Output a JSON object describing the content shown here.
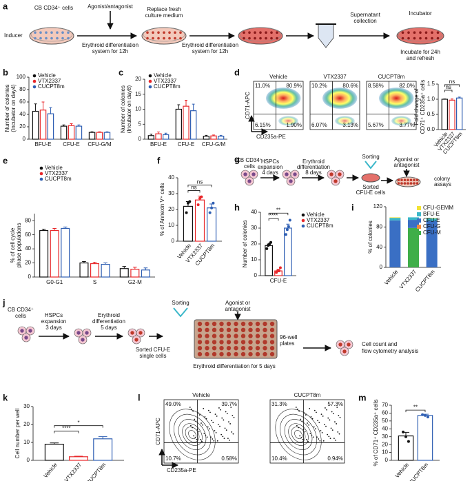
{
  "panel_labels": [
    "a",
    "b",
    "c",
    "d",
    "e",
    "f",
    "g",
    "h",
    "i",
    "j",
    "k",
    "l",
    "m"
  ],
  "diagram_a": {
    "cells": "CB CD34⁺ cells",
    "inducer": "Inducer",
    "agonist": "Agonist/antagonist",
    "replace": [
      "Replace fresh",
      "culture medium"
    ],
    "diff1": [
      "Erythroid differentiation",
      "system for 12h"
    ],
    "diff2": [
      "Erythroid differentiation",
      "system for 12h"
    ],
    "supernatant": [
      "Supernatant",
      "collection"
    ],
    "incubator": "Incubator",
    "incubate": [
      "Incubate for 24h",
      "and refresh"
    ]
  },
  "flow_d": {
    "x_label": "CD235a-PE",
    "y_label": "CD71-APC",
    "plots": [
      {
        "title": "Vehicle",
        "quadrants": [
          "11.0%",
          "80.9%",
          "6.15%",
          "1.90%"
        ]
      },
      {
        "title": "VTX2337",
        "quadrants": [
          "10.2%",
          "80.6%",
          "6.07%",
          "3.13%"
        ]
      },
      {
        "title": "CUCPT8m",
        "quadrants": [
          "8.58%",
          "82.0%",
          "5.67%",
          "3.77%"
        ]
      }
    ]
  },
  "diagram_g": {
    "cells": [
      "CB CD34⁺",
      "cells"
    ],
    "expansion": [
      "HSPCs",
      "expansion",
      "4 days"
    ],
    "diff": [
      "Erythroid",
      "differentiation",
      "8 days"
    ],
    "sorting": "Sorting",
    "sorted": [
      "Sorted",
      "CFU-E cells"
    ],
    "agonist": [
      "Agonist or",
      "antagonist"
    ],
    "assay": [
      "colony",
      "assays"
    ]
  },
  "diagram_j": {
    "cells": [
      "CB CD34⁺",
      "cells"
    ],
    "expansion": [
      "HSPCs",
      "expansion",
      "3 days"
    ],
    "diff": [
      "Erythroid",
      "differentiation",
      "5 days"
    ],
    "sorted": [
      "Sorted CFU-E",
      "single cells"
    ],
    "sorting": "Sorting",
    "agonist": [
      "Agonist or",
      "antagonist"
    ],
    "plates": [
      "96-well",
      "plates"
    ],
    "diff5": "Erythroid differentiation for 5 days",
    "analysis": [
      "Cell count and",
      "flow cytometry analysis"
    ]
  },
  "flow_l": {
    "x_label": "CD235a-PE",
    "y_label": "CD71-APC",
    "plots": [
      {
        "title": "Vehicle",
        "quadrants": [
          "49.0%",
          "39.7%",
          "10.7%",
          "0.58%"
        ]
      },
      {
        "title": "CUCPT8m",
        "quadrants": [
          "31.3%",
          "57.3%",
          "10.4%",
          "0.94%"
        ]
      }
    ]
  },
  "chart_data": [
    {
      "type": "bar",
      "y_label": [
        "Number of colonies",
        "(Incubator on day4)"
      ],
      "categories": [
        "BFU-E",
        "CFU-E",
        "CFU-G/M"
      ],
      "ylim": [
        0,
        100
      ],
      "yticks": [
        0,
        20,
        40,
        60,
        80,
        100
      ],
      "legend": true,
      "series": [
        {
          "name": "Vehicle",
          "color": "#111111",
          "values": [
            45,
            21,
            11
          ],
          "errors": [
            12,
            2,
            1
          ]
        },
        {
          "name": "VTX2337",
          "color": "#e8272a",
          "values": [
            47,
            22,
            11
          ],
          "errors": [
            13,
            3,
            1
          ]
        },
        {
          "name": "CUCPT8m",
          "color": "#2f5fb3",
          "values": [
            41,
            21,
            11
          ],
          "errors": [
            10,
            2,
            1
          ]
        }
      ]
    },
    {
      "type": "bar",
      "y_label": [
        "Number of colonies",
        "(Incubator on day8)"
      ],
      "categories": [
        "BFU-E",
        "CFU-E",
        "CFU-G/M"
      ],
      "ylim": [
        0,
        20
      ],
      "yticks": [
        0,
        5,
        10,
        15,
        20
      ],
      "legend": true,
      "series": [
        {
          "name": "Vehicle",
          "color": "#111111",
          "values": [
            1.2,
            10,
            1
          ],
          "errors": [
            0.5,
            1.5,
            0.3
          ]
        },
        {
          "name": "VTX2337",
          "color": "#e8272a",
          "values": [
            1.8,
            11,
            1.1
          ],
          "errors": [
            0.6,
            2,
            0.3
          ]
        },
        {
          "name": "CUCPT8m",
          "color": "#2f5fb3",
          "values": [
            1.5,
            9.5,
            1
          ],
          "errors": [
            0.5,
            2.2,
            0.3
          ]
        }
      ]
    },
    {
      "type": "bar",
      "y_label": [
        "Fold change of",
        "CD71⁺ CD235a⁺ cells"
      ],
      "ylim": [
        0,
        1.5
      ],
      "yticks": [
        {
          "value": 0,
          "label": "0.0"
        },
        0.5,
        {
          "value": 1,
          "label": "1.0"
        },
        1.5
      ],
      "annotations": [
        "ns",
        "ns"
      ],
      "series": [
        {
          "name": "Vehicle",
          "color": "#111111",
          "values": [
            1.0
          ],
          "errors": [
            0.01
          ]
        },
        {
          "name": "VTX2337",
          "color": "#e8272a",
          "values": [
            0.97
          ],
          "errors": [
            0.04
          ]
        },
        {
          "name": "CUCPT8m",
          "color": "#2f5fb3",
          "values": [
            1.04
          ],
          "errors": [
            0.03
          ]
        }
      ]
    },
    {
      "type": "bar",
      "y_label": [
        "% of cell cycle",
        "phase populations"
      ],
      "categories": [
        "G0-G1",
        "S",
        "G2-M"
      ],
      "ylim": [
        0,
        90
      ],
      "yticks": [
        0,
        20,
        40,
        60,
        80
      ],
      "legend": true,
      "series": [
        {
          "name": "Vehicle",
          "color": "#111111",
          "values": [
            66,
            20,
            12
          ],
          "errors": [
            2,
            2,
            3
          ]
        },
        {
          "name": "VTX2337",
          "color": "#e8272a",
          "values": [
            66,
            19,
            11
          ],
          "errors": [
            3,
            2,
            3
          ]
        },
        {
          "name": "CUCPT8m",
          "color": "#2f5fb3",
          "values": [
            69,
            18,
            10
          ],
          "errors": [
            2,
            2,
            3
          ]
        }
      ]
    },
    {
      "type": "bar",
      "y_label": [
        "% of Annexin V⁺ cells"
      ],
      "ylim": [
        0,
        40
      ],
      "yticks": [
        0,
        10,
        20,
        30,
        40
      ],
      "annotations": [
        "ns",
        "ns"
      ],
      "series": [
        {
          "name": "Vehicle",
          "color": "#111111",
          "values": [
            22
          ],
          "errors": [
            3
          ],
          "points": [
            [
              18,
              24,
              25
            ]
          ]
        },
        {
          "name": "VTX2337",
          "color": "#e8272a",
          "values": [
            26
          ],
          "errors": [
            2.5
          ],
          "points": [
            [
              23,
              27,
              28
            ]
          ]
        },
        {
          "name": "CUCPT8m",
          "color": "#2f5fb3",
          "values": [
            21
          ],
          "errors": [
            2.5
          ],
          "points": [
            [
              18,
              21,
              24
            ]
          ]
        }
      ]
    },
    {
      "type": "bar",
      "y_label": [
        "Number of colonies"
      ],
      "categories": [
        "CFU-E"
      ],
      "ylim": [
        0,
        40
      ],
      "yticks": [
        0,
        10,
        20,
        30,
        40
      ],
      "legend": true,
      "annotations": [
        "****",
        "**"
      ],
      "series": [
        {
          "name": "Vehicle",
          "color": "#111111",
          "values": [
            19
          ],
          "errors": [
            1
          ],
          "points": [
            [
              17,
              19,
              20,
              21
            ]
          ]
        },
        {
          "name": "VTX2337",
          "color": "#e8272a",
          "values": [
            3
          ],
          "errors": [
            1
          ],
          "points": [
            [
              2,
              3,
              3,
              5
            ]
          ]
        },
        {
          "name": "CUCPT8m",
          "color": "#2f5fb3",
          "values": [
            30
          ],
          "errors": [
            2.5
          ],
          "points": [
            [
              26,
              29,
              31,
              35
            ]
          ]
        }
      ]
    },
    {
      "type": "stacked_bar",
      "y_label": [
        "% of colonies"
      ],
      "categories": [
        "Vehicle",
        "VTX2337",
        "CUCPT8m"
      ],
      "ylim": [
        0,
        120
      ],
      "yticks": [
        0,
        40,
        80,
        120
      ],
      "legend": true,
      "series": [
        {
          "name": "CFU-M",
          "color": "#3fae49",
          "values": [
            0,
            78,
            0
          ]
        },
        {
          "name": "CFU-G",
          "color": "#f58a3a",
          "values": [
            0,
            0,
            0
          ]
        },
        {
          "name": "CFU-E",
          "color": "#3a6fc4",
          "values": [
            93,
            16,
            92
          ]
        },
        {
          "name": "BFU-E",
          "color": "#3ab7c9",
          "values": [
            5,
            5,
            5
          ]
        },
        {
          "name": "CFU-GEMM",
          "color": "#f2e335",
          "values": [
            1,
            0,
            1
          ]
        }
      ]
    },
    {
      "type": "bar",
      "y_label": [
        "Cell number per well"
      ],
      "ylim": [
        0,
        30
      ],
      "yticks": [
        0,
        10,
        20,
        30
      ],
      "annotations": [
        "****",
        "*"
      ],
      "series": [
        {
          "name": "Vehicle",
          "color": "#111111",
          "values": [
            9
          ],
          "errors": [
            0.7
          ]
        },
        {
          "name": "VTX2337",
          "color": "#e8272a",
          "values": [
            2
          ],
          "errors": [
            0.3
          ]
        },
        {
          "name": "CUCPT8m",
          "color": "#2f5fb3",
          "values": [
            12
          ],
          "errors": [
            1.2
          ]
        }
      ]
    },
    {
      "type": "bar",
      "y_label": [
        "% of CD71⁺ CD235a⁺ cells"
      ],
      "ylim": [
        0,
        70
      ],
      "yticks": [
        0,
        10,
        20,
        30,
        40,
        50,
        60,
        70
      ],
      "annotations": [
        "**"
      ],
      "series": [
        {
          "name": "Vehicle",
          "color": "#111111",
          "values": [
            31
          ],
          "errors": [
            4.5
          ],
          "points": [
            [
              36,
              30,
              24
            ]
          ]
        },
        {
          "name": "CUCPT8m",
          "color": "#2f5fb3",
          "values": [
            57
          ],
          "errors": [
            1.5
          ],
          "points": [
            [
              58,
              57,
              55
            ]
          ]
        }
      ]
    }
  ]
}
